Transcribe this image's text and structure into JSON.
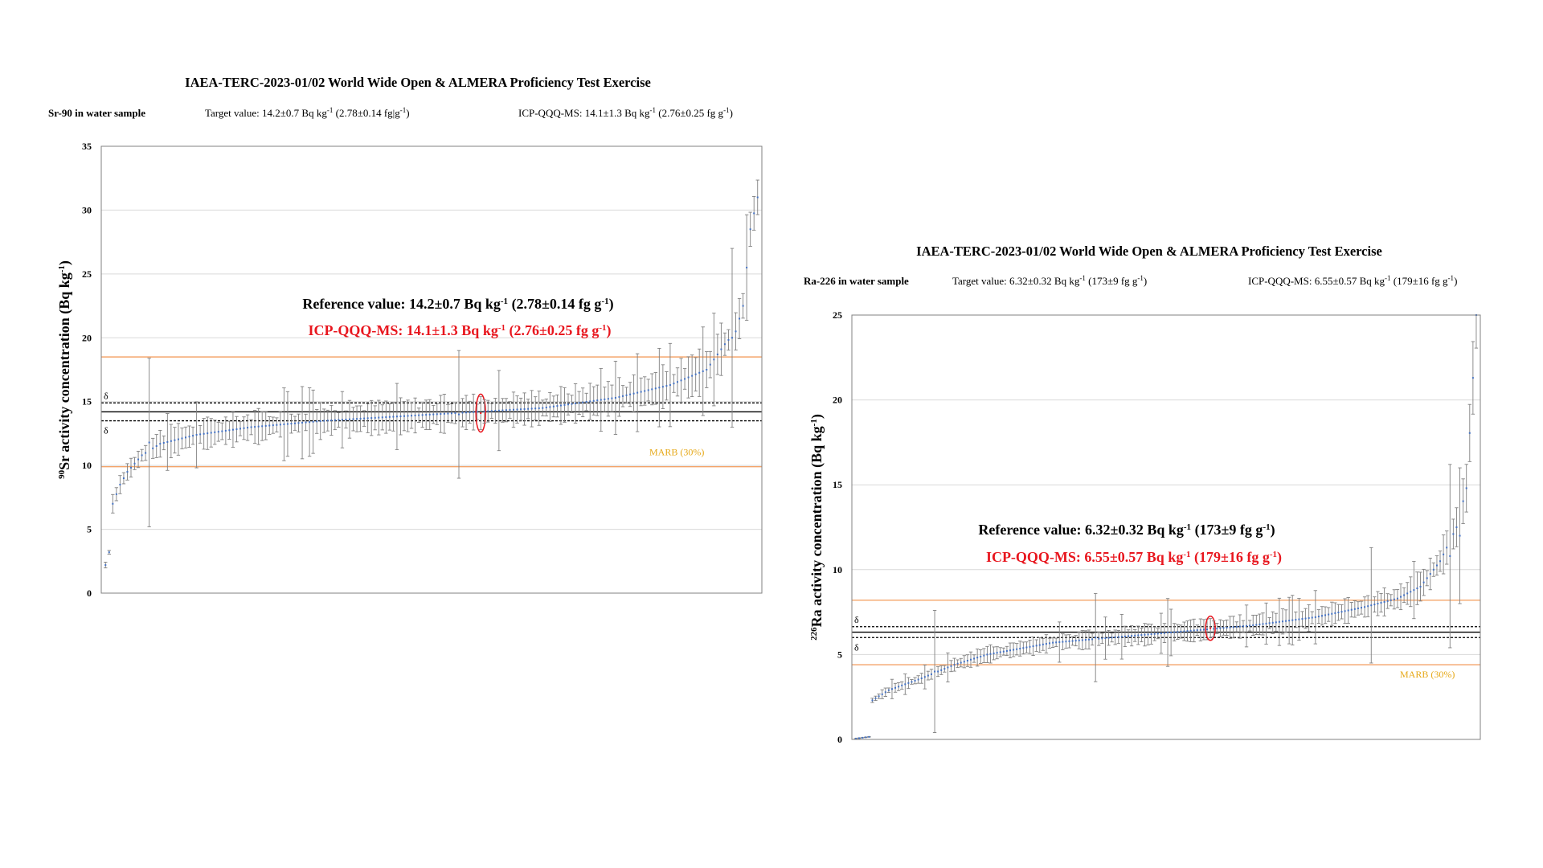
{
  "colors": {
    "marb_line": "#f4a46a",
    "marb_label": "#e6a817",
    "reference_text": "#000000",
    "icp_text": "#e8161e",
    "point": "#4472c4",
    "error_bar": "#808080",
    "grid": "#d9d9d9",
    "highlight_ellipse": "#e8161e"
  },
  "chart_data": [
    {
      "type": "scatter",
      "title": "IAEA-TERC-2023-01/02 World Wide Open & ALMERA Proficiency Test Exercise",
      "sample_label": "Sr-90 in water sample",
      "target_prefix": "Target value: 14.2±0.7 Bq kg",
      "target_sup": "-1",
      "target_mid": " (2.78±0.14 fg",
      "target_mid2": "g",
      "target_sup2": "-1",
      "target_end": ")",
      "icp_prefix": "ICP-QQQ-MS: 14.1±1.3 Bq kg",
      "icp_sup": "-1",
      "icp_mid": " (2.76±0.25 fg g",
      "icp_sup2": "-1",
      "icp_end": ")",
      "ref_prefix": "Reference value: 14.2±0.7 Bq kg",
      "ref_sup": "-1",
      "ref_mid": " (2.78±0.14 fg g",
      "ref_sup2": "-1",
      "ref_end": ")",
      "icp_big_prefix": "ICP-QQQ-MS: 14.1±1.3 Bq kg",
      "icp_big_sup": "-1",
      "icp_big_mid": " (2.76±0.25 fg g",
      "icp_big_sup2": "-1",
      "icp_big_end": ")",
      "ylabel_sup": "90",
      "ylabel_main": "Sr activity concentration (Bq kg",
      "ylabel_sup2": "-1",
      "ylabel_end": ")",
      "marb_label": "MARB (30%)",
      "delta_upper": "δ",
      "delta_lower": "δ",
      "ylim": [
        0,
        35
      ],
      "yticks": [
        "0",
        "5",
        "10",
        "15",
        "20",
        "25",
        "30",
        "35"
      ],
      "grid": true,
      "reference": 14.2,
      "reference_uncertainty": 0.7,
      "marb_upper": 18.5,
      "marb_lower": 9.9,
      "icp_value": 14.1,
      "icp_uncertainty": 1.3,
      "n_points": 180,
      "profile_idx": [
        0,
        1,
        2,
        4,
        6,
        10,
        15,
        25,
        40,
        60,
        90,
        120,
        140,
        155,
        165,
        170,
        173,
        175,
        177,
        179
      ],
      "profile_val": [
        2.2,
        3.2,
        7.0,
        8.5,
        9.5,
        10.8,
        11.7,
        12.4,
        13.0,
        13.5,
        14.0,
        14.5,
        15.3,
        16.3,
        17.5,
        19.5,
        20.5,
        22.5,
        28.5,
        31.0
      ],
      "outlier_bars": [
        {
          "index": 12,
          "value": 11.8,
          "unc": 6.6
        },
        {
          "index": 97,
          "value": 14.0,
          "unc": 5.0
        },
        {
          "index": 172,
          "value": 20.0,
          "unc": 7.0
        }
      ]
    },
    {
      "type": "scatter",
      "title": "IAEA-TERC-2023-01/02 World Wide Open & ALMERA Proficiency Test Exercise",
      "sample_label": "Ra-226 in water sample",
      "target_prefix": "Target value: 6.32±0.32 Bq kg",
      "target_sup": "-1",
      "target_mid": " (173±9 fg g",
      "target_sup2": "-1",
      "target_end": ")",
      "icp_prefix": "ICP-QQQ-MS: 6.55±0.57 Bq kg",
      "icp_sup": "-1",
      "icp_mid": " (179±16 fg g",
      "icp_sup2": "-1",
      "icp_end": ")",
      "ref_prefix": "Reference value: 6.32±0.32 Bq kg",
      "ref_sup": "-1",
      "ref_mid": " (173±9 fg g",
      "ref_sup2": "-1",
      "ref_end": ")",
      "icp_big_prefix": "ICP-QQQ-MS: 6.55±0.57 Bq kg",
      "icp_big_sup": "-1",
      "icp_big_mid": " (179±16 fg g",
      "icp_big_sup2": "-1",
      "icp_big_end": ")",
      "ylabel_sup": "226",
      "ylabel_main": "Ra activity concentration (Bq kg",
      "ylabel_sup2": "-1",
      "ylabel_end": ")",
      "marb_label": "MARB (30%)",
      "delta_upper": "δ",
      "delta_lower": "δ",
      "ylim": [
        0,
        25
      ],
      "yticks": [
        "0",
        "5",
        "10",
        "15",
        "20",
        "25"
      ],
      "grid": true,
      "reference": 6.32,
      "reference_uncertainty": 0.32,
      "marb_upper": 8.2,
      "marb_lower": 4.4,
      "icp_value": 6.55,
      "icp_uncertainty": 0.57,
      "n_points": 190,
      "profile_idx": [
        0,
        2,
        4,
        5,
        10,
        20,
        30,
        40,
        60,
        90,
        120,
        140,
        155,
        165,
        172,
        178,
        183,
        186,
        188,
        189
      ],
      "profile_val": [
        0.05,
        0.1,
        0.15,
        2.3,
        2.9,
        3.6,
        4.4,
        5.0,
        5.7,
        6.2,
        6.7,
        7.2,
        7.8,
        8.3,
        9.0,
        10.5,
        12.5,
        14.8,
        21.3,
        25.0
      ],
      "outlier_bars": [
        {
          "index": 24,
          "value": 4.0,
          "unc": 3.6
        },
        {
          "index": 73,
          "value": 6.0,
          "unc": 2.6
        },
        {
          "index": 95,
          "value": 6.3,
          "unc": 2.0
        },
        {
          "index": 157,
          "value": 7.9,
          "unc": 3.4
        },
        {
          "index": 181,
          "value": 10.8,
          "unc": 5.4
        },
        {
          "index": 184,
          "value": 12.0,
          "unc": 4.0
        }
      ]
    }
  ]
}
